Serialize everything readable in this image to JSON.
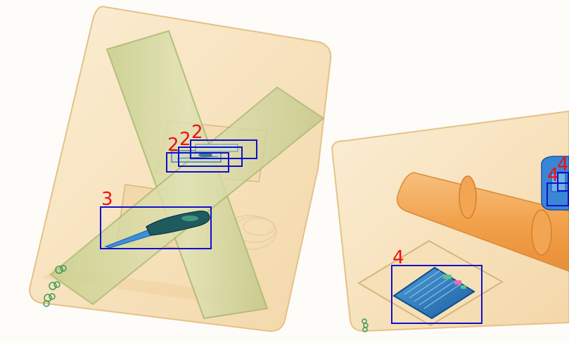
{
  "image": {
    "type": "x-ray baggage scan",
    "palette": {
      "bag": "#f6dfb6",
      "bag_edge": "#e3bd86",
      "tube": "#d9dca6",
      "tube_edge": "#a8b86c",
      "orange_cylinder": "#f2a552",
      "metal_blue": "#2a6fc4",
      "dark_metal": "#1f5a5f",
      "box_color": "#1010cc",
      "label_color": "#ee1111"
    }
  },
  "detections": [
    {
      "label": "2"
    },
    {
      "label": "2"
    },
    {
      "label": "2"
    },
    {
      "label": "3"
    },
    {
      "label": "4"
    },
    {
      "label": "4"
    },
    {
      "label": "4"
    }
  ]
}
